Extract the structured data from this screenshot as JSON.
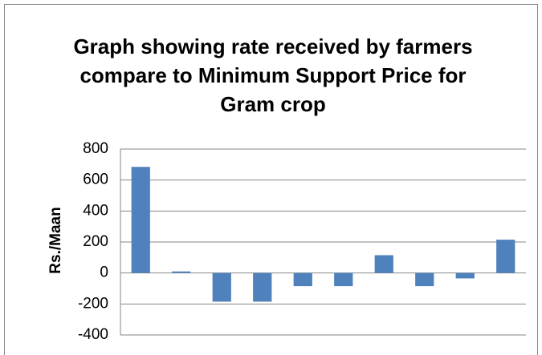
{
  "chart_data": {
    "type": "bar",
    "title": "Graph showing rate received by farmers compare to Minimum Support Price for Gram crop",
    "ylabel": "Rs./Maan",
    "categories": [
      null,
      null,
      null,
      null,
      null,
      null,
      null,
      null,
      null,
      null
    ],
    "values": [
      685,
      10,
      -185,
      -185,
      -85,
      -85,
      115,
      -85,
      -35,
      215
    ],
    "color": "#4f81bd",
    "ylim": [
      -400,
      800
    ],
    "yticks": [
      -400,
      -200,
      0,
      200,
      400,
      600,
      800
    ],
    "grid": true
  }
}
